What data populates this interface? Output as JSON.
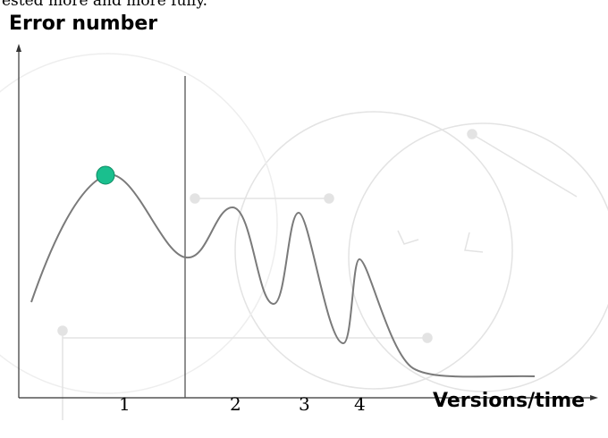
{
  "header_fragment": "ested more and more fully.",
  "y_axis_label": "Error number",
  "x_axis_label": "Versions/time",
  "x_ticks": [
    "1",
    "2",
    "3",
    "4"
  ],
  "colors": {
    "axis": "#333333",
    "curve": "#7a7a7a",
    "divider": "#555555",
    "marker_fill": "#1abf8e",
    "marker_stroke": "#0f8a63",
    "watermark": "#e3e3e3"
  },
  "icons": [
    "error-curve",
    "start-marker",
    "version-divider",
    "background-watermark"
  ]
}
